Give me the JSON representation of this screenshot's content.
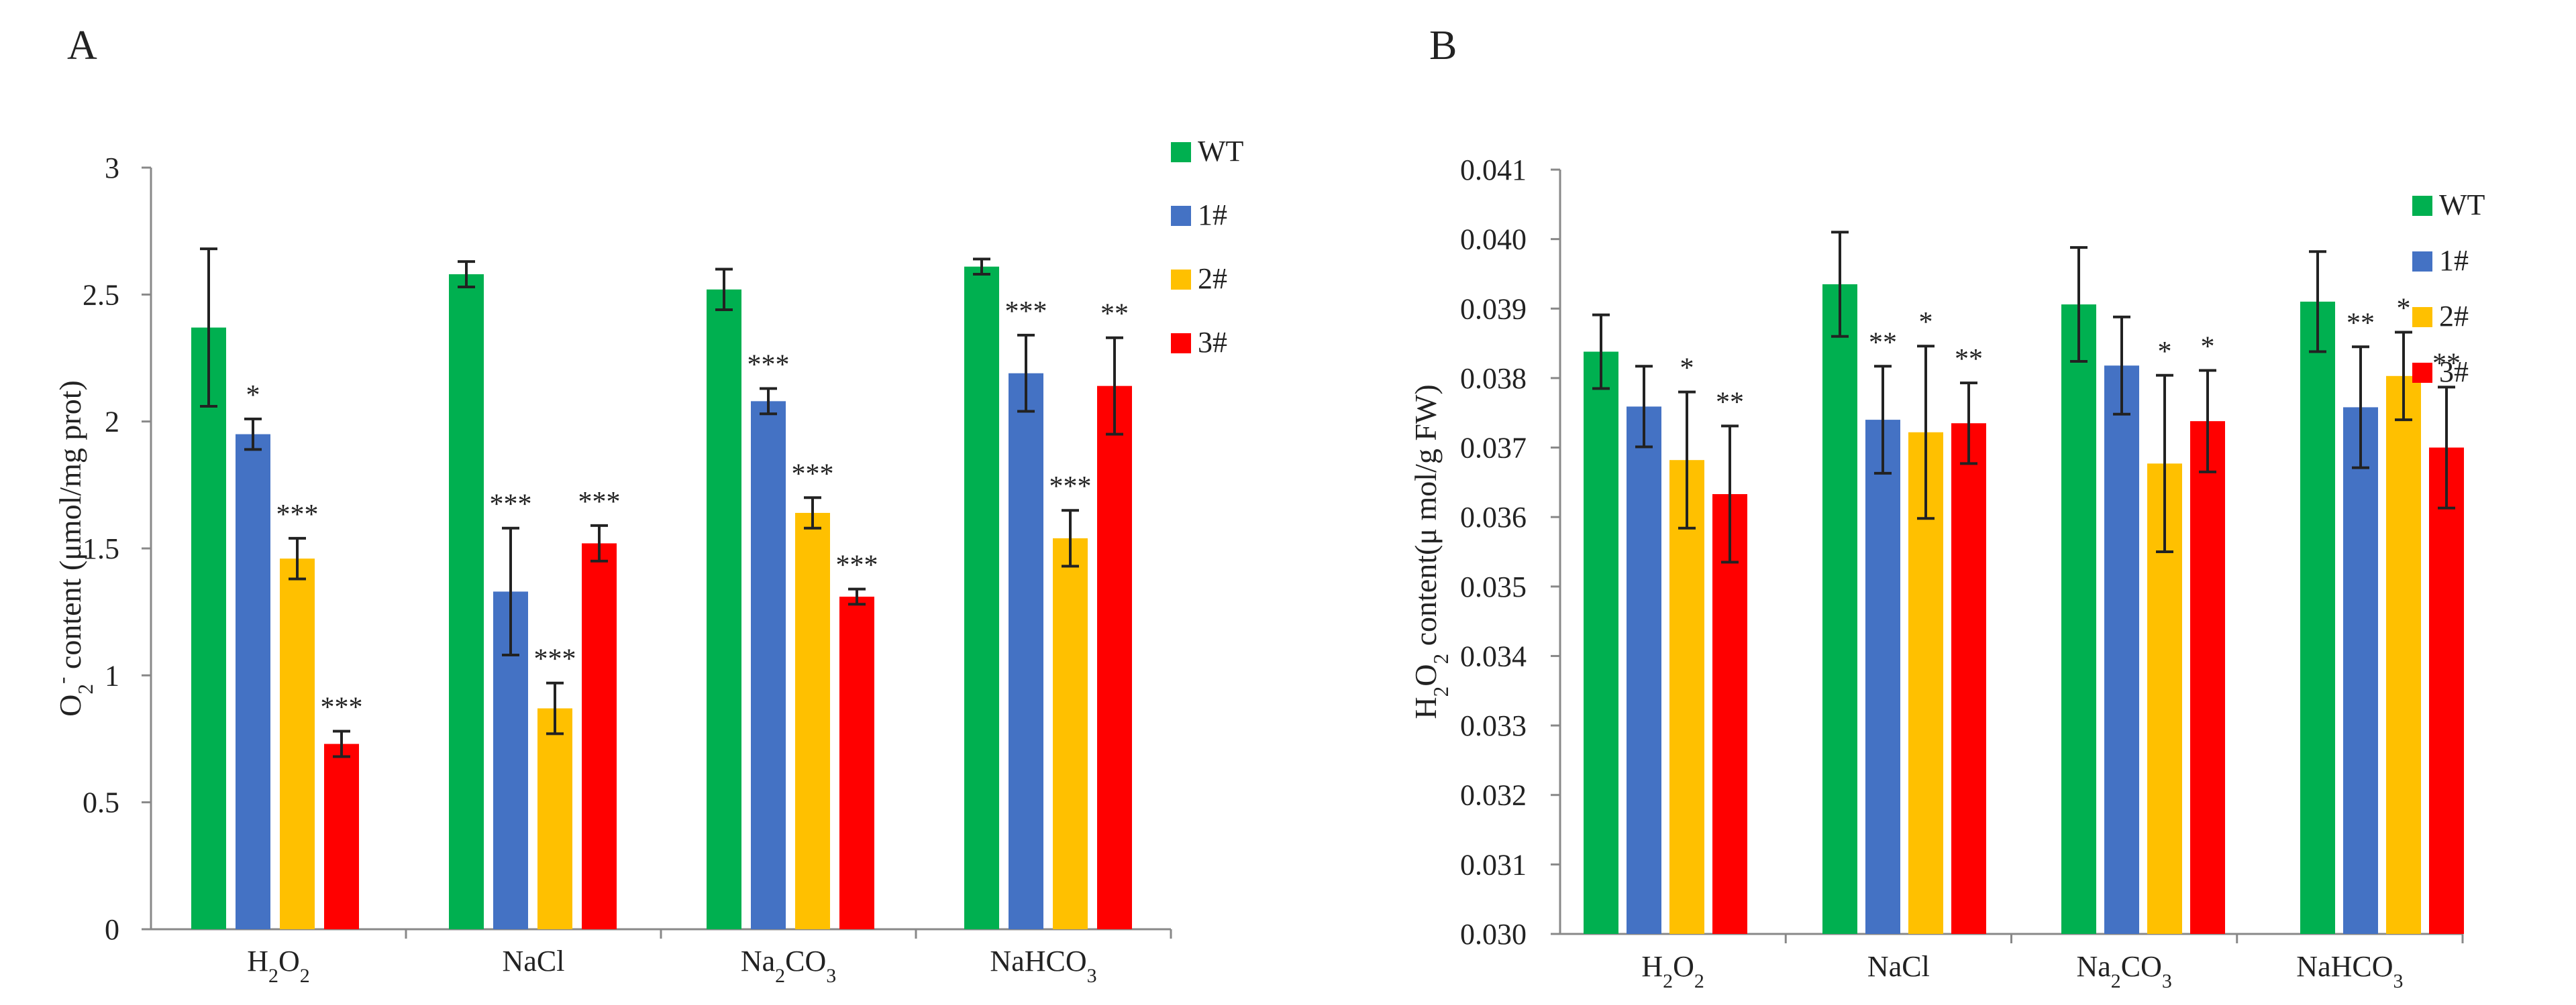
{
  "colors": {
    "WT": "#00b050",
    "1#": "#4472c4",
    "2#": "#ffc000",
    "3#": "#ff0000"
  },
  "chart_data": [
    {
      "type": "bar",
      "panel": "A",
      "title": "",
      "xlabel": "",
      "ylabel_parts": [
        {
          "t": "O",
          "s": "n"
        },
        {
          "t": "2",
          "s": "sub"
        },
        {
          "t": "-",
          "s": "sup"
        },
        {
          "t": " content (μmol/mg prot)",
          "s": "n"
        }
      ],
      "ylim": [
        0,
        3
      ],
      "ytick_values": [
        0,
        0.5,
        1,
        1.5,
        2,
        2.5,
        3
      ],
      "ytick_labels": [
        "0",
        "0.5",
        "1",
        "1.5",
        "2",
        "2.5",
        "3"
      ],
      "categories": [
        [
          {
            "t": "H",
            "s": "n"
          },
          {
            "t": "2",
            "s": "sub"
          },
          {
            "t": "O",
            "s": "n"
          },
          {
            "t": "2",
            "s": "sub"
          }
        ],
        [
          {
            "t": "NaCl",
            "s": "n"
          }
        ],
        [
          {
            "t": "Na",
            "s": "n"
          },
          {
            "t": "2",
            "s": "sub"
          },
          {
            "t": "CO",
            "s": "n"
          },
          {
            "t": "3",
            "s": "sub"
          }
        ],
        [
          {
            "t": "NaHCO",
            "s": "n"
          },
          {
            "t": "3",
            "s": "sub"
          }
        ]
      ],
      "legend_position": "top-right",
      "series": [
        {
          "name": "WT",
          "values": [
            2.37,
            2.58,
            2.52,
            2.61
          ],
          "errors": [
            0.31,
            0.05,
            0.08,
            0.03
          ],
          "sig": [
            "",
            "",
            "",
            ""
          ]
        },
        {
          "name": "1#",
          "values": [
            1.95,
            1.33,
            2.08,
            2.19
          ],
          "errors": [
            0.06,
            0.25,
            0.05,
            0.15
          ],
          "sig": [
            "*",
            "***",
            "***",
            "***"
          ]
        },
        {
          "name": "2#",
          "values": [
            1.46,
            0.87,
            1.64,
            1.54
          ],
          "errors": [
            0.08,
            0.1,
            0.06,
            0.11
          ],
          "sig": [
            "***",
            "***",
            "***",
            "***"
          ]
        },
        {
          "name": "3#",
          "values": [
            0.73,
            1.52,
            1.31,
            2.14
          ],
          "errors": [
            0.05,
            0.07,
            0.03,
            0.19
          ],
          "sig": [
            "***",
            "***",
            "***",
            "**"
          ]
        }
      ]
    },
    {
      "type": "bar",
      "panel": "B",
      "title": "",
      "xlabel": "",
      "ylabel_parts": [
        {
          "t": "H",
          "s": "n"
        },
        {
          "t": "2",
          "s": "sub"
        },
        {
          "t": "O",
          "s": "n"
        },
        {
          "t": "2",
          "s": "sub"
        },
        {
          "t": "  content(μ mol/g FW)",
          "s": "n"
        }
      ],
      "ylim": [
        0.03,
        0.041
      ],
      "ytick_values": [
        0.03,
        0.031,
        0.032,
        0.033,
        0.034,
        0.035,
        0.036,
        0.037,
        0.038,
        0.039,
        0.04,
        0.041
      ],
      "ytick_labels": [
        "0.030",
        "0.031",
        "0.032",
        "0.033",
        "0.034",
        "0.035",
        "0.036",
        "0.037",
        "0.038",
        "0.039",
        "0.040",
        "0.041"
      ],
      "categories": [
        [
          {
            "t": "H",
            "s": "n"
          },
          {
            "t": "2",
            "s": "sub"
          },
          {
            "t": "O",
            "s": "n"
          },
          {
            "t": "2",
            "s": "sub"
          }
        ],
        [
          {
            "t": "NaCl",
            "s": "n"
          }
        ],
        [
          {
            "t": "Na",
            "s": "n"
          },
          {
            "t": "2",
            "s": "sub"
          },
          {
            "t": "CO",
            "s": "n"
          },
          {
            "t": "3",
            "s": "sub"
          }
        ],
        [
          {
            "t": "NaHCO",
            "s": "n"
          },
          {
            "t": "3",
            "s": "sub"
          }
        ]
      ],
      "legend_position": "right",
      "series": [
        {
          "name": "WT",
          "values": [
            0.03838,
            0.03935,
            0.03906,
            0.0391
          ],
          "errors": [
            0.00053,
            0.00075,
            0.00082,
            0.00072
          ],
          "sig": [
            "",
            "",
            "",
            ""
          ]
        },
        {
          "name": "1#",
          "values": [
            0.03759,
            0.0374,
            0.03818,
            0.03758
          ],
          "errors": [
            0.00058,
            0.00077,
            0.0007,
            0.00087
          ],
          "sig": [
            "",
            "**",
            "",
            "**"
          ]
        },
        {
          "name": "2#",
          "values": [
            0.03682,
            0.03722,
            0.03677,
            0.03803
          ],
          "errors": [
            0.00098,
            0.00124,
            0.00127,
            0.00063
          ],
          "sig": [
            "*",
            "*",
            "*",
            "*"
          ]
        },
        {
          "name": "3#",
          "values": [
            0.03633,
            0.03735,
            0.03738,
            0.037
          ],
          "errors": [
            0.00098,
            0.00058,
            0.00073,
            0.00087
          ],
          "sig": [
            "**",
            "**",
            "*",
            "**"
          ]
        }
      ]
    }
  ]
}
